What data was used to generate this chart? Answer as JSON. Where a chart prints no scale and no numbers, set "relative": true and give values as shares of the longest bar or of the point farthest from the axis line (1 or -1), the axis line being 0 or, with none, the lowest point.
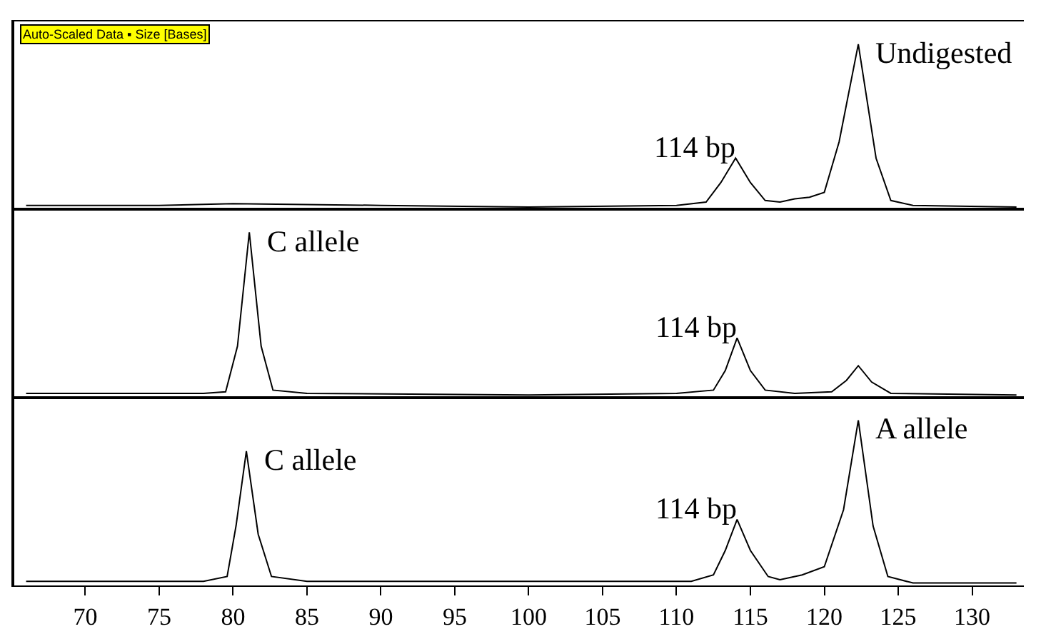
{
  "chart_data": [
    {
      "type": "line",
      "relative": true,
      "xlim": [
        65.2,
        133.5
      ],
      "tick_labels": false,
      "grid": false,
      "series": [
        {
          "color": "#000000",
          "x": [
            66,
            75,
            80,
            90,
            100,
            110,
            112,
            113,
            114,
            115,
            116,
            117,
            118,
            119,
            120,
            121,
            122.3,
            123.5,
            124.5,
            126,
            133
          ],
          "values": [
            0.01,
            0.01,
            0.02,
            0.01,
            0.0,
            0.01,
            0.03,
            0.15,
            0.3,
            0.15,
            0.04,
            0.03,
            0.05,
            0.06,
            0.09,
            0.4,
            1,
            0.3,
            0.04,
            0.01,
            0.0
          ]
        }
      ],
      "annotations": [
        "Auto-Scaled Data ▪ Size [Bases]",
        {
          "text": "114 bp",
          "x": 114,
          "y": 0.3
        },
        {
          "text": "Undigested",
          "x": 122.3,
          "y": 1
        }
      ]
    },
    {
      "type": "line",
      "relative": true,
      "xlim": [
        65.2,
        133.5
      ],
      "tick_labels": false,
      "grid": false,
      "series": [
        {
          "color": "#000000",
          "x": [
            66,
            78,
            79.5,
            80.3,
            81.1,
            81.9,
            82.7,
            85,
            100,
            110,
            112.5,
            113.3,
            114.1,
            115,
            116,
            118,
            120.5,
            121.5,
            122.3,
            123.2,
            124.5,
            133
          ],
          "values": [
            0.01,
            0.01,
            0.02,
            0.3,
            1,
            0.3,
            0.03,
            0.01,
            0.0,
            0.01,
            0.03,
            0.15,
            0.35,
            0.15,
            0.03,
            0.01,
            0.02,
            0.09,
            0.18,
            0.08,
            0.01,
            0.0
          ]
        }
      ],
      "annotations": [
        {
          "text": "C allele",
          "x": 81.1,
          "y": 1
        },
        {
          "text": "114 bp",
          "x": 114.1,
          "y": 0.35
        }
      ]
    },
    {
      "type": "line",
      "relative": true,
      "xlim": [
        65.2,
        133.5
      ],
      "xticks": [
        70,
        75,
        80,
        85,
        90,
        95,
        100,
        105,
        110,
        115,
        120,
        125,
        130
      ],
      "tick_labels": "x",
      "grid": false,
      "series": [
        {
          "color": "#000000",
          "x": [
            66,
            78,
            79.6,
            80.2,
            80.9,
            81.7,
            82.6,
            85,
            100,
            111,
            112.5,
            113.3,
            114.1,
            115,
            116.2,
            117,
            118.5,
            120,
            121.3,
            122.3,
            123.3,
            124.3,
            126,
            133
          ],
          "values": [
            0.01,
            0.01,
            0.04,
            0.35,
            0.81,
            0.3,
            0.04,
            0.01,
            0.01,
            0.01,
            0.05,
            0.2,
            0.39,
            0.2,
            0.04,
            0.02,
            0.05,
            0.1,
            0.45,
            1,
            0.35,
            0.04,
            0.0,
            0.0
          ]
        }
      ],
      "annotations": [
        {
          "text": "C allele",
          "x": 80.9,
          "y": 0.81
        },
        {
          "text": "114 bp",
          "x": 114.1,
          "y": 0.39
        },
        {
          "text": "A allele",
          "x": 122.3,
          "y": 1
        }
      ]
    }
  ]
}
